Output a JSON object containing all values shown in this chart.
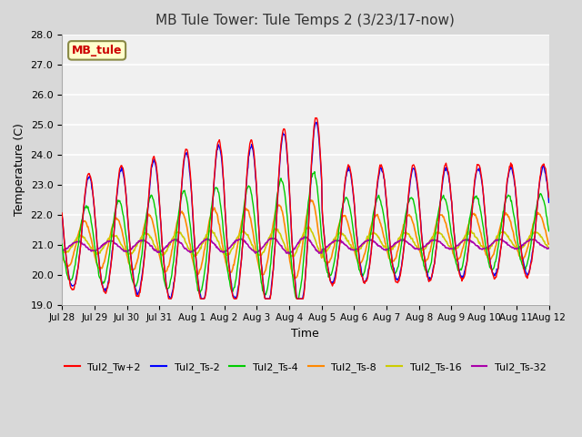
{
  "title": "MB Tule Tower: Tule Temps 2 (3/23/17-now)",
  "xlabel": "Time",
  "ylabel": "Temperature (C)",
  "ylim": [
    19.0,
    28.0
  ],
  "yticks": [
    19.0,
    20.0,
    21.0,
    22.0,
    23.0,
    24.0,
    25.0,
    26.0,
    27.0,
    28.0
  ],
  "bg_color": "#d8d8d8",
  "plot_bg_color": "#f0f0f0",
  "legend_label": "MB_tule",
  "series_colors": {
    "Tul2_Tw+2": "#ff0000",
    "Tul2_Ts-2": "#0000ff",
    "Tul2_Ts-4": "#00cc00",
    "Tul2_Ts-8": "#ff8800",
    "Tul2_Ts-16": "#cccc00",
    "Tul2_Ts-32": "#aa00aa"
  },
  "xtick_labels": [
    "Jul 28",
    "Jul 29",
    "Jul 30",
    "Jul 31",
    "Aug 1",
    "Aug 2",
    "Aug 3",
    "Aug 4",
    "Aug 5",
    "Aug 6",
    "Aug 7",
    "Aug 8",
    "Aug 9",
    "Aug 10",
    "Aug 11",
    "Aug 12"
  ],
  "xtick_positions": [
    0,
    1,
    2,
    3,
    4,
    5,
    6,
    7,
    8,
    9,
    10,
    11,
    12,
    13,
    14,
    15
  ],
  "n_days": 16,
  "points_per_day": 48
}
